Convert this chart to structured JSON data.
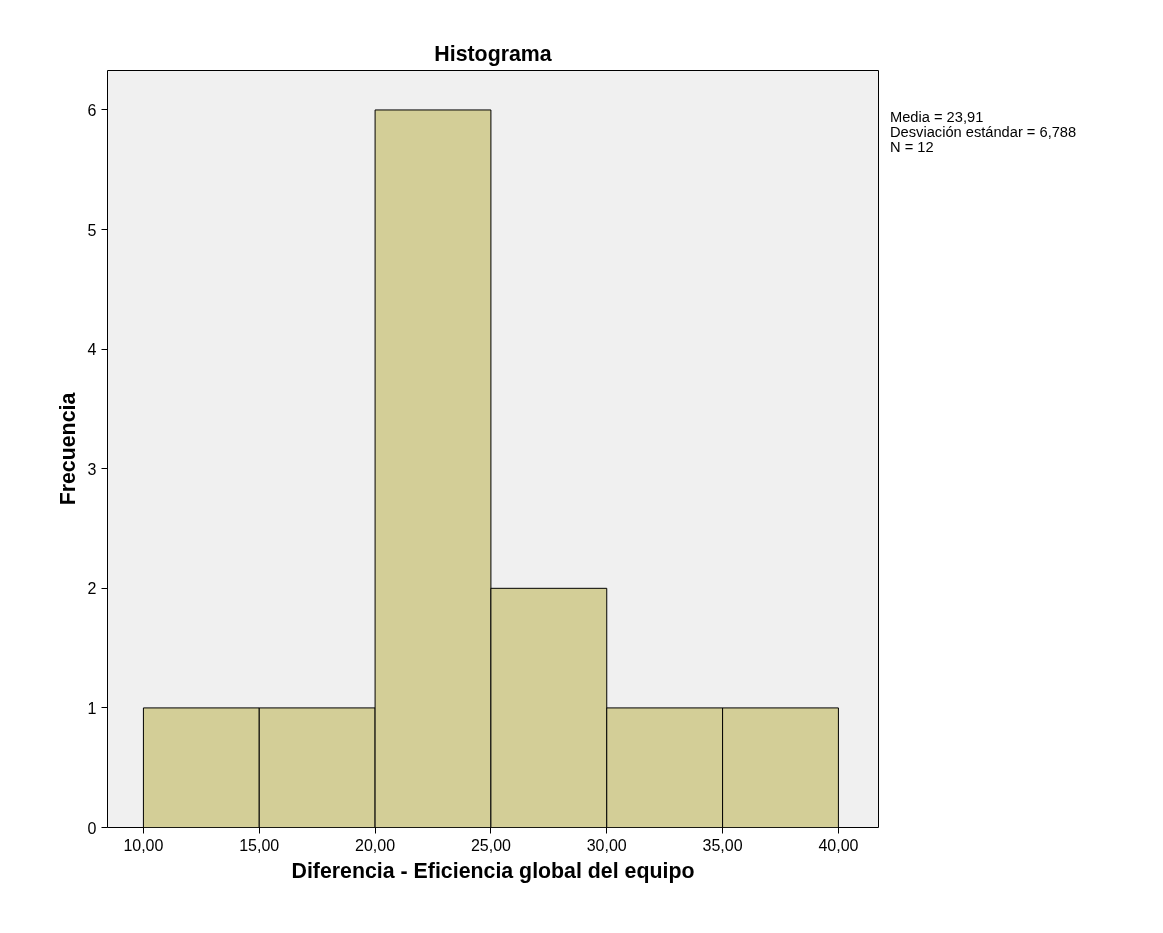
{
  "chart_data": {
    "type": "histogram",
    "title": "Histograma",
    "xlabel": "Diferencia - Eficiencia global del equipo",
    "ylabel": "Frecuencia",
    "bins": [
      10,
      15,
      20,
      25,
      30,
      35,
      40
    ],
    "values": [
      1,
      1,
      6,
      2,
      1,
      1
    ],
    "color": "#d3ce97",
    "xlim": [
      8.45,
      41.73
    ],
    "ylim": [
      0,
      6.33
    ],
    "xticks": [
      {
        "value": 10,
        "label": "10,00"
      },
      {
        "value": 15,
        "label": "15,00"
      },
      {
        "value": 20,
        "label": "20,00"
      },
      {
        "value": 25,
        "label": "25,00"
      },
      {
        "value": 30,
        "label": "30,00"
      },
      {
        "value": 35,
        "label": "35,00"
      },
      {
        "value": 40,
        "label": "40,00"
      }
    ],
    "yticks": [
      0,
      1,
      2,
      3,
      4,
      5,
      6
    ],
    "grid": false,
    "annotations": [
      "Media = 23,91",
      "Desviación estándar = 6,788",
      "N = 12"
    ]
  }
}
